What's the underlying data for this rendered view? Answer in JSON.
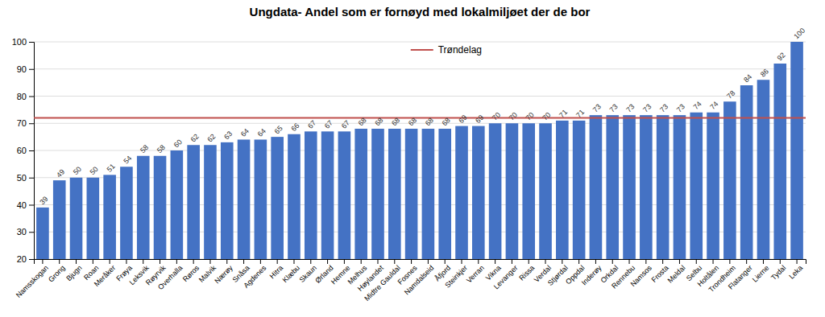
{
  "chart_data": {
    "type": "bar",
    "title": "Ungdata- Andel som er fornøyd med lokalmiljøet der de bor",
    "categories": [
      "Namsskogan",
      "Grong",
      "Bjugn",
      "Roan",
      "Meråker",
      "Frøya",
      "Leksvik",
      "Røyrvik",
      "Overhalla",
      "Røros",
      "Malvik",
      "Nærøy",
      "Snåsa",
      "Agdenes",
      "Hitra",
      "Klæbu",
      "Skaun",
      "Ørland",
      "Hemne",
      "Melhus",
      "Høylandet",
      "Midtre Gauldal",
      "Fosnes",
      "Namdalseid",
      "Åfjord",
      "Steinkjer",
      "Verran",
      "Vikna",
      "Levanger",
      "Rissa",
      "Verdal",
      "Stjørdal",
      "Oppdal",
      "Inderøy",
      "Orkdal",
      "Rennebu",
      "Namsos",
      "Frosta",
      "Meldal",
      "Selbu",
      "Holtålen",
      "Trondheim",
      "Flatanger",
      "Lierne",
      "Tydal",
      "Leka"
    ],
    "values": [
      39,
      49,
      50,
      50,
      51,
      54,
      58,
      58,
      60,
      62,
      62,
      63,
      64,
      64,
      65,
      66,
      67,
      67,
      67,
      68,
      68,
      68,
      68,
      68,
      68,
      69,
      69,
      70,
      70,
      70,
      70,
      71,
      71,
      73,
      73,
      73,
      73,
      73,
      73,
      74,
      74,
      78,
      84,
      86,
      92,
      100
    ],
    "color": "#4472C4",
    "reference": {
      "name": "Trøndelag",
      "value": 72,
      "color": "#C0504D"
    },
    "ylim": [
      20,
      100
    ],
    "yticks": [
      20,
      30,
      40,
      50,
      60,
      70,
      80,
      90,
      100
    ],
    "grid": true,
    "data_labels": true,
    "legend": "top"
  }
}
